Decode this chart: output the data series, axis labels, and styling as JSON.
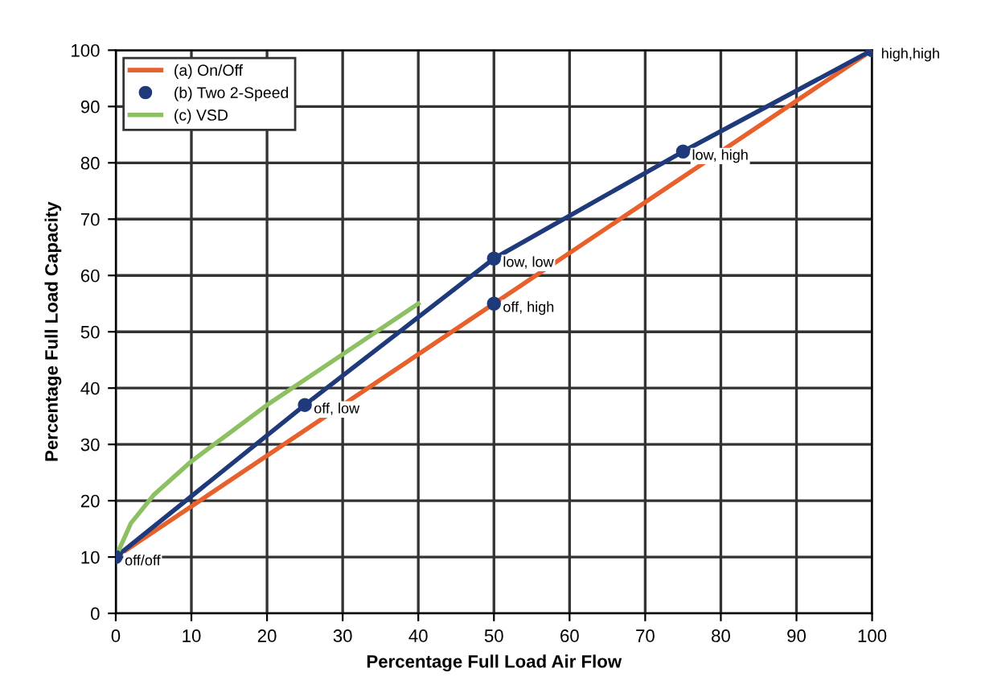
{
  "chart_data": {
    "type": "line",
    "xlabel": "Percentage Full Load Air Flow",
    "ylabel": "Percentage Full Load Capacity",
    "xlim": [
      0,
      100
    ],
    "ylim": [
      0,
      100
    ],
    "xticks": [
      0,
      10,
      20,
      30,
      40,
      50,
      60,
      70,
      80,
      90,
      100
    ],
    "yticks": [
      0,
      10,
      20,
      30,
      40,
      50,
      60,
      70,
      80,
      90,
      100
    ],
    "grid": true,
    "legend": "top left",
    "series": [
      {
        "name": "(a) On/Off",
        "color": "#e8602c",
        "marker": "none",
        "x": [
          0,
          100
        ],
        "values": [
          10,
          100
        ]
      },
      {
        "name": "(b) Two 2-Speed",
        "type": "scatter",
        "color": "#1f3a7a",
        "marker": "circle",
        "x": [
          0,
          25,
          50,
          50,
          75,
          100
        ],
        "values": [
          10,
          37,
          63,
          55,
          82,
          100
        ]
      },
      {
        "color": "#1f3a7a",
        "marker": "none",
        "x": [
          0,
          25,
          50,
          75,
          100
        ],
        "values": [
          10,
          37,
          63,
          82,
          100
        ]
      },
      {
        "name": "(c) VSD",
        "color": "#8cc063",
        "marker": "none",
        "x": [
          0,
          2,
          5,
          10,
          15,
          20,
          25,
          30,
          35,
          40
        ],
        "values": [
          10,
          16,
          21,
          27,
          32,
          37,
          41.5,
          46,
          50.5,
          55
        ]
      }
    ],
    "annotations": [
      {
        "text": "off/off",
        "x": 0,
        "y": 10
      },
      {
        "text": "off, low",
        "x": 25,
        "y": 37
      },
      {
        "text": "low, low",
        "x": 50,
        "y": 63
      },
      {
        "text": "off, high",
        "x": 50,
        "y": 55
      },
      {
        "text": "low, high",
        "x": 75,
        "y": 82
      },
      {
        "text": "high,high",
        "x": 100,
        "y": 100
      }
    ]
  }
}
